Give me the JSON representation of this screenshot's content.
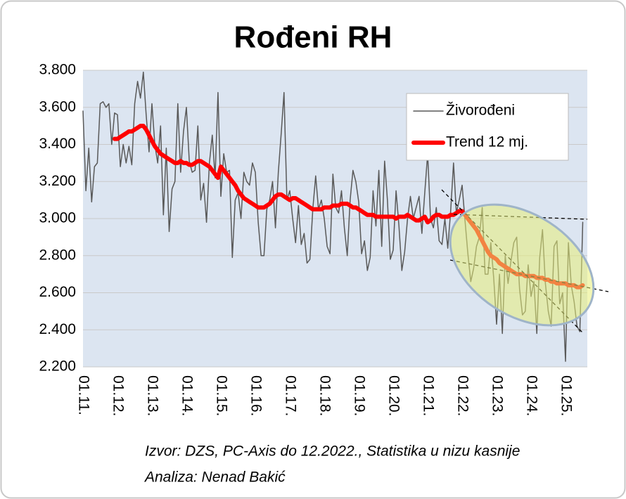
{
  "chart_data": {
    "type": "line",
    "title": "Rođeni RH",
    "source": "Izvor: DZS, PC-Axis do 12.2022., Statistika u nizu kasnije",
    "author": "Analiza: Nenad Bakić",
    "legend": "top-right",
    "grid": true,
    "ylim": [
      2200,
      3800
    ],
    "yticks": [
      {
        "value": 2200,
        "label": "2.200"
      },
      {
        "value": 2400,
        "label": "2.400"
      },
      {
        "value": 2600,
        "label": "2.600"
      },
      {
        "value": 2800,
        "label": "2.800"
      },
      {
        "value": 3000,
        "label": "3.000"
      },
      {
        "value": 3200,
        "label": "3.200"
      },
      {
        "value": 3400,
        "label": "3.400"
      },
      {
        "value": 3600,
        "label": "3.600"
      },
      {
        "value": 3800,
        "label": "3.800"
      }
    ],
    "categories": [
      "01.11.",
      null,
      null,
      null,
      null,
      null,
      null,
      null,
      null,
      null,
      null,
      null,
      "01.12.",
      null,
      null,
      null,
      null,
      null,
      null,
      null,
      null,
      null,
      null,
      null,
      "01.13.",
      null,
      null,
      null,
      null,
      null,
      null,
      null,
      null,
      null,
      null,
      null,
      "01.14.",
      null,
      null,
      null,
      null,
      null,
      null,
      null,
      null,
      null,
      null,
      null,
      "01.15.",
      null,
      null,
      null,
      null,
      null,
      null,
      null,
      null,
      null,
      null,
      null,
      "01.16.",
      null,
      null,
      null,
      null,
      null,
      null,
      null,
      null,
      null,
      null,
      null,
      "01.17.",
      null,
      null,
      null,
      null,
      null,
      null,
      null,
      null,
      null,
      null,
      null,
      "01.18.",
      null,
      null,
      null,
      null,
      null,
      null,
      null,
      null,
      null,
      null,
      null,
      "01.19.",
      null,
      null,
      null,
      null,
      null,
      null,
      null,
      null,
      null,
      null,
      null,
      "01.20.",
      null,
      null,
      null,
      null,
      null,
      null,
      null,
      null,
      null,
      null,
      null,
      "01.21.",
      null,
      null,
      null,
      null,
      null,
      null,
      null,
      null,
      null,
      null,
      null,
      "01.22.",
      null,
      null,
      null,
      null,
      null,
      null,
      null,
      null,
      null,
      null,
      null,
      "01.23.",
      null,
      null,
      null,
      null,
      null,
      null,
      null,
      null,
      null,
      null,
      null,
      "01.24.",
      null,
      null,
      null,
      null,
      null,
      null,
      null,
      null,
      null,
      null,
      null,
      "01.25.",
      null,
      null,
      null,
      null,
      null,
      null
    ],
    "series": [
      {
        "name": "Živorođeni",
        "color": "#595959",
        "width": 1.5,
        "values": [
          3580,
          3150,
          3380,
          3090,
          3280,
          3300,
          3620,
          3630,
          3600,
          3620,
          3400,
          3570,
          3560,
          3280,
          3400,
          3300,
          3390,
          3290,
          3620,
          3740,
          3650,
          3790,
          3560,
          3360,
          3620,
          3400,
          3300,
          3500,
          3020,
          3380,
          2930,
          3160,
          3200,
          3620,
          3250,
          3470,
          3600,
          3310,
          3250,
          3260,
          3500,
          3100,
          3190,
          2980,
          3300,
          3450,
          3220,
          3680,
          3120,
          3350,
          3250,
          3260,
          2790,
          3100,
          3140,
          3000,
          3250,
          3200,
          3180,
          3300,
          3250,
          2980,
          2800,
          2800,
          3050,
          3100,
          3200,
          2950,
          3250,
          3460,
          3680,
          3100,
          3150,
          3000,
          2870,
          3070,
          2860,
          2920,
          2760,
          2780,
          3050,
          3230,
          3050,
          3100,
          3000,
          2850,
          2810,
          3240,
          3060,
          3030,
          3150,
          2950,
          2800,
          3100,
          3260,
          3200,
          3090,
          2810,
          2880,
          2720,
          2790,
          3150,
          2960,
          3260,
          2850,
          3310,
          3100,
          2780,
          2830,
          3150,
          2960,
          2720,
          2820,
          3000,
          3120,
          3000,
          3060,
          3120,
          2920,
          3140,
          3350,
          3000,
          2950,
          3060,
          2880,
          2860,
          3000,
          2840,
          3040,
          3300,
          3030,
          3100,
          3180,
          2990,
          2810,
          2660,
          2730,
          2850,
          2900,
          3060,
          2700,
          2700,
          2870,
          2680,
          2430,
          2700,
          2380,
          2800,
          2650,
          2770,
          2870,
          2900,
          2620,
          2480,
          2500,
          2750,
          2580,
          2660,
          2380,
          2790,
          2940,
          2650,
          2500,
          2420,
          2850,
          2880,
          2540,
          2600,
          2230,
          2870,
          2640,
          2550,
          2420,
          2390,
          2980
        ]
      },
      {
        "name": "Trend 12 mj.",
        "color": "#ff0000",
        "width": 6,
        "values": [
          null,
          null,
          null,
          null,
          null,
          null,
          null,
          null,
          null,
          null,
          null,
          3430,
          3430,
          3440,
          3450,
          3460,
          3470,
          3470,
          3480,
          3490,
          3500,
          3500,
          3480,
          3450,
          3420,
          3390,
          3370,
          3350,
          3340,
          3330,
          3320,
          3310,
          3300,
          3300,
          3310,
          3300,
          3300,
          3290,
          3290,
          3300,
          3310,
          3310,
          3300,
          3290,
          3280,
          3260,
          3240,
          3220,
          3280,
          3260,
          3240,
          3220,
          3200,
          3180,
          3150,
          3130,
          3110,
          3100,
          3090,
          3080,
          3070,
          3060,
          3060,
          3060,
          3070,
          3080,
          3100,
          3120,
          3130,
          3130,
          3120,
          3110,
          3100,
          3110,
          3110,
          3100,
          3090,
          3080,
          3070,
          3060,
          3050,
          3050,
          3050,
          3050,
          3060,
          3060,
          3060,
          3070,
          3070,
          3070,
          3080,
          3080,
          3080,
          3070,
          3060,
          3060,
          3050,
          3040,
          3030,
          3020,
          3020,
          3020,
          3010,
          3010,
          3010,
          3010,
          3010,
          3010,
          3010,
          3000,
          3010,
          3010,
          3010,
          3020,
          3010,
          3000,
          2990,
          2990,
          3000,
          3010,
          2980,
          2990,
          3010,
          3020,
          3020,
          3010,
          3010,
          3010,
          3020,
          3020,
          3030,
          3040,
          3040,
          3020,
          3000,
          2980,
          2960,
          2940,
          2910,
          2880,
          2850,
          2820,
          2800,
          2790,
          2780,
          2760,
          2750,
          2740,
          2730,
          2720,
          2710,
          2700,
          2700,
          2700,
          2690,
          2690,
          2690,
          2690,
          2680,
          2680,
          2680,
          2670,
          2670,
          2660,
          2660,
          2650,
          2650,
          2650,
          2650,
          2640,
          2640,
          2640,
          2630,
          2630,
          2640
        ]
      }
    ]
  }
}
